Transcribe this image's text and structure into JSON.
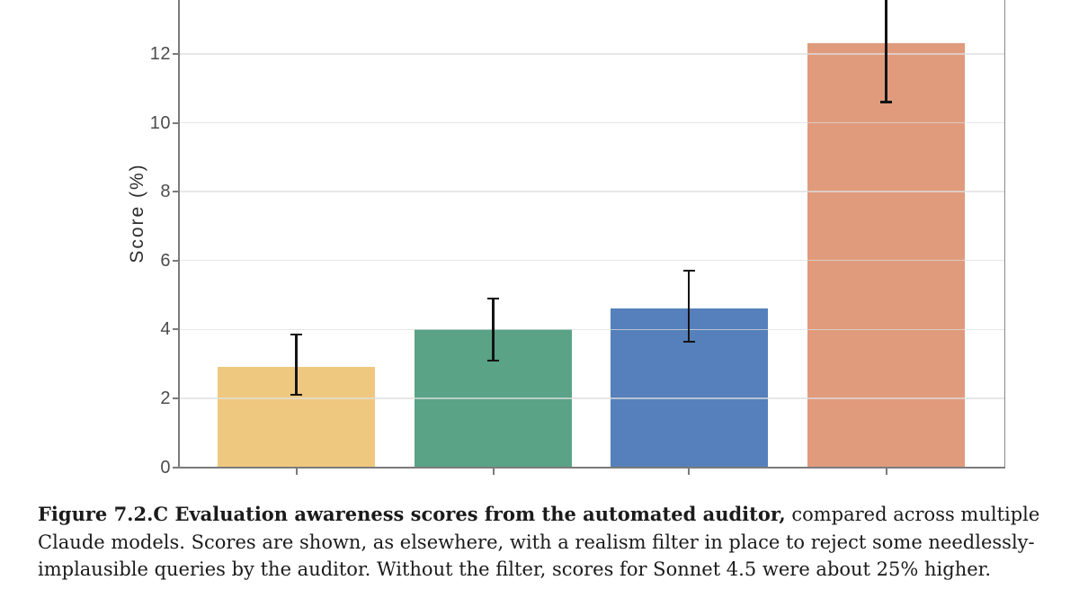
{
  "figure": {
    "caption_bold": "Figure 7.2.C Evaluation awareness scores from the automated auditor,",
    "caption_regular": " compared across multiple Claude models. Scores are shown, as elsewhere, with a realism filter in place to reject some needlessly-implausible queries by the auditor. Without the filter, scores for Sonnet 4.5 were about 25% higher."
  },
  "chart_data": {
    "type": "bar",
    "title": "",
    "xlabel": "",
    "ylabel": "Score (%)",
    "categories": [
      "",
      "",
      "",
      ""
    ],
    "categories_note": "four bars, x tick marks present but category labels not visible in the crop",
    "values": [
      2.9,
      4.0,
      4.6,
      12.3
    ],
    "error_low": [
      2.1,
      3.1,
      3.65,
      10.6
    ],
    "error_high": [
      3.85,
      4.9,
      5.7,
      null
    ],
    "error_note": "upper error bar of the fourth bar extends past the top edge of the visible crop",
    "bar_colors": [
      "#efc87f",
      "#5aa386",
      "#5580bb",
      "#e09b7c"
    ],
    "error_color": "#141414",
    "yticks": [
      0,
      2,
      4,
      6,
      8,
      10,
      12
    ],
    "ylim_visible": [
      0,
      13.6
    ],
    "grid": true,
    "grid_color": "#e7e7e7",
    "legend": false,
    "plot_clipped_at_top": true
  }
}
